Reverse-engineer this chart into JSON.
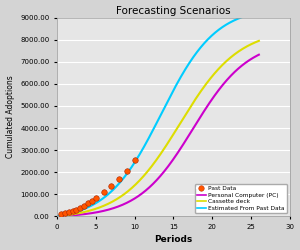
{
  "title": "Forecasting Scenarios",
  "xlabel": "Periods",
  "ylabel": "Cumulated Adoptions",
  "xlim": [
    0,
    30
  ],
  "ylim": [
    0,
    9000
  ],
  "yticks": [
    0,
    1000,
    2000,
    3000,
    4000,
    5000,
    6000,
    7000,
    8000,
    9000
  ],
  "xticks": [
    0,
    5,
    10,
    15,
    20,
    25,
    30
  ],
  "bg_color": "#d4d4d4",
  "plot_bg_color": "#e6e6e6",
  "past_data_x": [
    0.5,
    1,
    1.5,
    2,
    2.5,
    3,
    3.5,
    4,
    4.5,
    5,
    6,
    7,
    8,
    9,
    10
  ],
  "past_data_y": [
    80,
    130,
    180,
    230,
    280,
    360,
    460,
    580,
    700,
    840,
    1080,
    1380,
    1680,
    2050,
    2550
  ],
  "pc_color": "#cc00cc",
  "cassette_color": "#dddd00",
  "estimated_color": "#00ccff",
  "legend_labels": [
    "Past Data",
    "Personal Computer (PC)",
    "Cassette deck",
    "Estimated From Past Data"
  ],
  "past_data_color": "#ff5500",
  "bass_m_pc": 8000,
  "bass_p_pc": 0.002,
  "bass_q_pc": 0.28,
  "bass_m_cass": 8500,
  "bass_p_cass": 0.004,
  "bass_q_cass": 0.26,
  "bass_m_est": 9500,
  "bass_p_est": 0.006,
  "bass_q_est": 0.28
}
